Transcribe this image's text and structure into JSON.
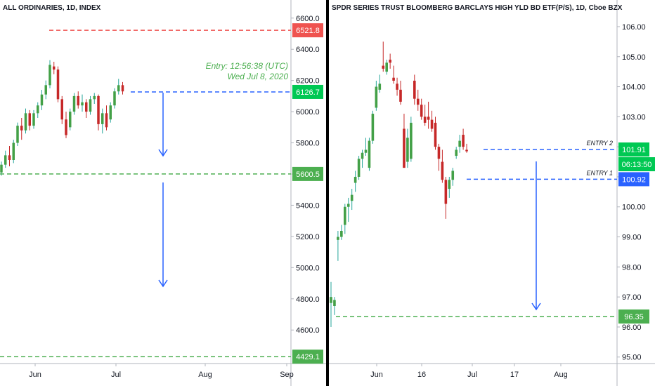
{
  "chart_data": [
    {
      "type": "candlestick",
      "title": "ALL ORDINARIES, 1D, INDEX",
      "ylim": [
        4340,
        6680
      ],
      "y_ticks": [
        4600,
        4800,
        5000,
        5200,
        5400,
        5600,
        5800,
        6000,
        6200,
        6400,
        6600
      ],
      "y_tick_labels": [
        "4600.0",
        "4800.0",
        "5000.0",
        "5200.0",
        "5400.0",
        "5600.0",
        "5800.0",
        "6000.0",
        "6200.0",
        "6400.0",
        "6600.0"
      ],
      "x_tick_labels": [
        "Jun",
        "Jul",
        "Aug",
        "Sep"
      ],
      "candles": [
        {
          "o": 5610,
          "h": 5680,
          "l": 5590,
          "c": 5660
        },
        {
          "o": 5660,
          "h": 5750,
          "l": 5640,
          "c": 5720
        },
        {
          "o": 5720,
          "h": 5780,
          "l": 5650,
          "c": 5690
        },
        {
          "o": 5690,
          "h": 5820,
          "l": 5670,
          "c": 5800
        },
        {
          "o": 5800,
          "h": 5930,
          "l": 5780,
          "c": 5910
        },
        {
          "o": 5910,
          "h": 5960,
          "l": 5820,
          "c": 5880
        },
        {
          "o": 5880,
          "h": 6020,
          "l": 5860,
          "c": 5990
        },
        {
          "o": 5990,
          "h": 6010,
          "l": 5880,
          "c": 5910
        },
        {
          "o": 5910,
          "h": 6010,
          "l": 5890,
          "c": 5990
        },
        {
          "o": 5990,
          "h": 6060,
          "l": 5960,
          "c": 6040
        },
        {
          "o": 6040,
          "h": 6140,
          "l": 6010,
          "c": 6110
        },
        {
          "o": 6110,
          "h": 6200,
          "l": 6080,
          "c": 6170
        },
        {
          "o": 6170,
          "h": 6330,
          "l": 6150,
          "c": 6300
        },
        {
          "o": 6290,
          "h": 6320,
          "l": 6240,
          "c": 6270
        },
        {
          "o": 6270,
          "h": 6290,
          "l": 6060,
          "c": 6080
        },
        {
          "o": 6080,
          "h": 6100,
          "l": 5920,
          "c": 5950
        },
        {
          "o": 5950,
          "h": 6000,
          "l": 5830,
          "c": 5850
        },
        {
          "o": 5900,
          "h": 6020,
          "l": 5880,
          "c": 6000
        },
        {
          "o": 6000,
          "h": 6120,
          "l": 5980,
          "c": 6100
        },
        {
          "o": 6100,
          "h": 6130,
          "l": 6020,
          "c": 6040
        },
        {
          "o": 6040,
          "h": 6110,
          "l": 6000,
          "c": 6060
        },
        {
          "o": 6060,
          "h": 6080,
          "l": 5960,
          "c": 6000
        },
        {
          "o": 6000,
          "h": 6100,
          "l": 5980,
          "c": 6080
        },
        {
          "o": 6080,
          "h": 6120,
          "l": 6050,
          "c": 6100
        },
        {
          "o": 6100,
          "h": 6110,
          "l": 5880,
          "c": 5920
        },
        {
          "o": 5920,
          "h": 6020,
          "l": 5860,
          "c": 5990
        },
        {
          "o": 5990,
          "h": 6040,
          "l": 5880,
          "c": 5900
        },
        {
          "o": 5950,
          "h": 6060,
          "l": 5930,
          "c": 6040
        },
        {
          "o": 6040,
          "h": 6150,
          "l": 6020,
          "c": 6130
        },
        {
          "o": 6130,
          "h": 6210,
          "l": 6110,
          "c": 6170
        },
        {
          "o": 6170,
          "h": 6190,
          "l": 6110,
          "c": 6130
        }
      ],
      "levels": [
        {
          "value": 6521.8,
          "label": "6521.8",
          "color": "#ef5350",
          "style": "dashed"
        },
        {
          "value": 6126.7,
          "label": "6126.7",
          "color": "#2962ff",
          "style": "dashed"
        },
        {
          "value": 5600.5,
          "label": "5600.5",
          "color": "#4caf50",
          "style": "dashed"
        },
        {
          "value": 4429.1,
          "label": "4429.1",
          "color": "#4caf50",
          "style": "dashed"
        }
      ],
      "level_badge_colors": [
        "#ef5350",
        "#00c853",
        "#4caf50",
        "#4caf50"
      ],
      "annotations": [
        "Entry: 12:56:38 (UTC)",
        "Wed Jul 8, 2020"
      ]
    },
    {
      "type": "candlestick",
      "title": "SPDR SERIES TRUST BLOOMBERG BARCLAYS HIGH YLD BD ETF(P/S), 1D, Cboe BZX",
      "ylim": [
        94.55,
        106.7
      ],
      "y_ticks": [
        95,
        96,
        97,
        98,
        99,
        100,
        101,
        102,
        103,
        104,
        105,
        106
      ],
      "y_tick_labels": [
        "95.00",
        "96.00",
        "97.00",
        "98.00",
        "99.00",
        "100.00",
        "101.00",
        "102.00",
        "103.00",
        "104.00",
        "105.00",
        "106.00"
      ],
      "x_tick_labels": [
        "Jun",
        "16",
        "Jul",
        "17",
        "Aug"
      ],
      "candles": [
        {
          "o": 96.8,
          "h": 97.5,
          "l": 96.0,
          "c": 97.0
        },
        {
          "o": 96.7,
          "h": 97.0,
          "l": 96.4,
          "c": 96.9
        },
        {
          "o": 98.9,
          "h": 99.2,
          "l": 98.2,
          "c": 99.0
        },
        {
          "o": 99.0,
          "h": 99.4,
          "l": 98.9,
          "c": 99.2
        },
        {
          "o": 99.4,
          "h": 100.1,
          "l": 99.1,
          "c": 100.0
        },
        {
          "o": 100.0,
          "h": 100.3,
          "l": 99.5,
          "c": 100.1
        },
        {
          "o": 100.2,
          "h": 100.6,
          "l": 99.9,
          "c": 100.4
        },
        {
          "o": 100.8,
          "h": 101.2,
          "l": 100.5,
          "c": 101.0
        },
        {
          "o": 101.0,
          "h": 101.7,
          "l": 100.9,
          "c": 101.6
        },
        {
          "o": 101.6,
          "h": 101.9,
          "l": 101.3,
          "c": 101.8
        },
        {
          "o": 101.8,
          "h": 102.3,
          "l": 101.7,
          "c": 101.9
        },
        {
          "o": 101.3,
          "h": 102.3,
          "l": 101.2,
          "c": 102.2
        },
        {
          "o": 102.2,
          "h": 103.2,
          "l": 102.1,
          "c": 103.1
        },
        {
          "o": 103.3,
          "h": 104.2,
          "l": 103.2,
          "c": 104.0
        },
        {
          "o": 103.9,
          "h": 104.4,
          "l": 103.8,
          "c": 104.1
        },
        {
          "o": 104.7,
          "h": 105.5,
          "l": 104.5,
          "c": 104.6
        },
        {
          "o": 104.5,
          "h": 104.9,
          "l": 104.4,
          "c": 104.8
        },
        {
          "o": 104.9,
          "h": 105.1,
          "l": 104.6,
          "c": 104.8
        },
        {
          "o": 104.3,
          "h": 104.7,
          "l": 104.1,
          "c": 104.2
        },
        {
          "o": 104.1,
          "h": 104.3,
          "l": 103.7,
          "c": 103.9
        },
        {
          "o": 103.9,
          "h": 104.2,
          "l": 103.4,
          "c": 103.5
        },
        {
          "o": 102.6,
          "h": 103.1,
          "l": 101.3,
          "c": 101.3
        },
        {
          "o": 101.5,
          "h": 102.6,
          "l": 101.3,
          "c": 102.3
        },
        {
          "o": 101.6,
          "h": 103.0,
          "l": 101.5,
          "c": 102.8
        },
        {
          "o": 104.2,
          "h": 104.4,
          "l": 103.4,
          "c": 103.6
        },
        {
          "o": 103.6,
          "h": 103.9,
          "l": 103.2,
          "c": 103.4
        },
        {
          "o": 103.4,
          "h": 103.6,
          "l": 102.9,
          "c": 103.0
        },
        {
          "o": 103.0,
          "h": 103.4,
          "l": 102.7,
          "c": 102.8
        },
        {
          "o": 103.0,
          "h": 103.5,
          "l": 102.6,
          "c": 102.9
        },
        {
          "o": 102.9,
          "h": 103.2,
          "l": 102.5,
          "c": 102.6
        },
        {
          "o": 102.8,
          "h": 103.0,
          "l": 101.9,
          "c": 102.0
        },
        {
          "o": 102.0,
          "h": 102.1,
          "l": 101.2,
          "c": 101.6
        },
        {
          "o": 101.5,
          "h": 101.9,
          "l": 100.8,
          "c": 100.9
        },
        {
          "o": 100.9,
          "h": 101.0,
          "l": 99.6,
          "c": 100.1
        },
        {
          "o": 100.6,
          "h": 101.0,
          "l": 100.3,
          "c": 100.9
        },
        {
          "o": 100.9,
          "h": 101.3,
          "l": 100.7,
          "c": 101.2
        },
        {
          "o": 101.7,
          "h": 102.0,
          "l": 101.6,
          "c": 101.9
        },
        {
          "o": 102.0,
          "h": 102.4,
          "l": 101.8,
          "c": 102.2
        },
        {
          "o": 102.4,
          "h": 102.6,
          "l": 101.9,
          "c": 102.0
        },
        {
          "o": 101.9,
          "h": 102.1,
          "l": 101.8,
          "c": 101.85
        }
      ],
      "levels": [
        {
          "value": 101.91,
          "label": "101.91",
          "color": "#2962ff",
          "style": "dashed",
          "name": "ENTRY 2"
        },
        {
          "value": 100.92,
          "label": "100.92",
          "color": "#2962ff",
          "style": "dashed",
          "name": "ENTRY 1"
        },
        {
          "value": 96.35,
          "label": "96.35",
          "color": "#4caf50",
          "style": "dashed"
        }
      ],
      "level_badge_colors": [
        "#00c853",
        "#2962ff",
        "#4caf50"
      ],
      "countdown": "06:13:50"
    }
  ],
  "colors": {
    "up": "#26a69a",
    "up_fill": "#43a047",
    "down": "#c62828",
    "arrow": "#2962ff",
    "entry_text": "#4caf50"
  }
}
